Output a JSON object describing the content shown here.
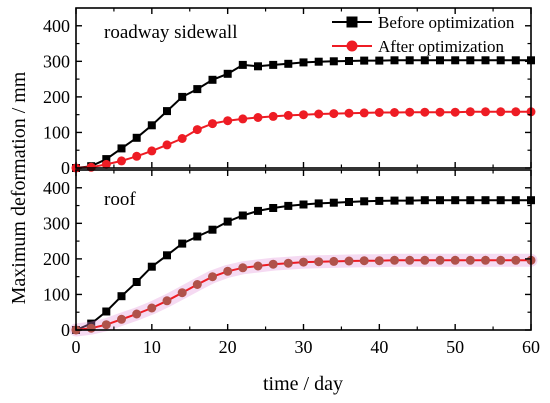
{
  "chart_data": {
    "type": "line",
    "xlabel": "time / day",
    "ylabel": "Maximum deformation / mm",
    "xlim": [
      0,
      60
    ],
    "x_ticks": [
      0,
      10,
      20,
      30,
      40,
      50,
      60
    ],
    "grid": false,
    "legend_position": "top-right",
    "colors": {
      "before": "#000000",
      "after": "#ee1c24",
      "after_glow": "#e08bd8",
      "after_marker_roof": "#b0524a"
    },
    "legend": [
      {
        "series": "before",
        "label": "Before optimization",
        "marker": "square"
      },
      {
        "series": "after",
        "label": "After optimization",
        "marker": "circle"
      }
    ],
    "panels": [
      {
        "name": "top",
        "label": "roadway sidewall",
        "ylim": [
          0,
          450
        ],
        "y_ticks": [
          0,
          100,
          200,
          300,
          400
        ],
        "series": [
          {
            "key": "before",
            "name": "Before optimization",
            "marker": "square",
            "x": [
              0,
              2,
              4,
              6,
              8,
              10,
              12,
              14,
              16,
              18,
              20,
              22,
              24,
              26,
              28,
              30,
              32,
              34,
              36,
              38,
              40,
              42,
              44,
              46,
              48,
              50,
              52,
              54,
              56,
              58,
              60
            ],
            "y": [
              0,
              5,
              25,
              55,
              85,
              120,
              160,
              200,
              222,
              248,
              265,
              290,
              286,
              290,
              293,
              297,
              299,
              300,
              301,
              302,
              302,
              303,
              303,
              303,
              303,
              303,
              303,
              303,
              303,
              303,
              303
            ]
          },
          {
            "key": "after",
            "name": "After optimization",
            "marker": "circle",
            "x": [
              0,
              2,
              4,
              6,
              8,
              10,
              12,
              14,
              16,
              18,
              20,
              22,
              24,
              26,
              28,
              30,
              32,
              34,
              36,
              38,
              40,
              42,
              44,
              46,
              48,
              50,
              52,
              54,
              56,
              58,
              60
            ],
            "y": [
              0,
              2,
              10,
              20,
              33,
              48,
              65,
              83,
              108,
              125,
              133,
              138,
              142,
              145,
              148,
              150,
              152,
              153,
              154,
              155,
              156,
              156,
              157,
              157,
              157,
              157,
              158,
              158,
              158,
              158,
              158
            ]
          }
        ]
      },
      {
        "name": "bottom",
        "label": "roof",
        "ylim": [
          0,
          450
        ],
        "y_ticks": [
          0,
          100,
          200,
          300,
          400
        ],
        "series": [
          {
            "key": "before",
            "name": "Before optimization",
            "marker": "square",
            "x": [
              0,
              2,
              4,
              6,
              8,
              10,
              12,
              14,
              16,
              18,
              20,
              22,
              24,
              26,
              28,
              30,
              32,
              34,
              36,
              38,
              40,
              42,
              44,
              46,
              48,
              50,
              52,
              54,
              56,
              58,
              60
            ],
            "y": [
              0,
              18,
              52,
              95,
              135,
              178,
              210,
              243,
              263,
              282,
              305,
              322,
              335,
              343,
              349,
              353,
              356,
              358,
              360,
              362,
              363,
              364,
              364,
              365,
              365,
              365,
              365,
              365,
              365,
              365,
              365
            ]
          },
          {
            "key": "after",
            "name": "After optimization",
            "marker": "circle",
            "x": [
              0,
              2,
              4,
              6,
              8,
              10,
              12,
              14,
              16,
              18,
              20,
              22,
              24,
              26,
              28,
              30,
              32,
              34,
              36,
              38,
              40,
              42,
              44,
              46,
              48,
              50,
              52,
              54,
              56,
              58,
              60
            ],
            "y": [
              0,
              5,
              15,
              30,
              45,
              62,
              82,
              105,
              128,
              150,
              165,
              175,
              180,
              185,
              188,
              191,
              192,
              193,
              194,
              195,
              195,
              196,
              196,
              196,
              196,
              196,
              196,
              196,
              196,
              196,
              196
            ]
          }
        ]
      }
    ]
  }
}
